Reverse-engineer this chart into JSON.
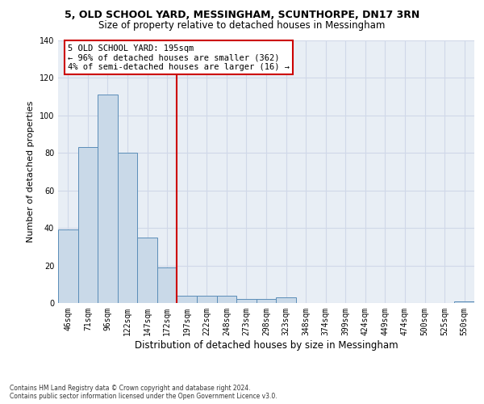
{
  "title1": "5, OLD SCHOOL YARD, MESSINGHAM, SCUNTHORPE, DN17 3RN",
  "title2": "Size of property relative to detached houses in Messingham",
  "xlabel": "Distribution of detached houses by size in Messingham",
  "ylabel": "Number of detached properties",
  "footnote": "Contains HM Land Registry data © Crown copyright and database right 2024.\nContains public sector information licensed under the Open Government Licence v3.0.",
  "categories": [
    "46sqm",
    "71sqm",
    "96sqm",
    "122sqm",
    "147sqm",
    "172sqm",
    "197sqm",
    "222sqm",
    "248sqm",
    "273sqm",
    "298sqm",
    "323sqm",
    "348sqm",
    "374sqm",
    "399sqm",
    "424sqm",
    "449sqm",
    "474sqm",
    "500sqm",
    "525sqm",
    "550sqm"
  ],
  "values": [
    39,
    83,
    111,
    80,
    35,
    19,
    4,
    4,
    4,
    2,
    2,
    3,
    0,
    0,
    0,
    0,
    0,
    0,
    0,
    0,
    1
  ],
  "bar_color": "#c9d9e8",
  "bar_edge_color": "#5b8db8",
  "vline_x_index": 6,
  "vline_color": "#cc0000",
  "annotation_text": "5 OLD SCHOOL YARD: 195sqm\n← 96% of detached houses are smaller (362)\n4% of semi-detached houses are larger (16) →",
  "annotation_box_color": "#ffffff",
  "annotation_box_edge": "#cc0000",
  "ylim": [
    0,
    140
  ],
  "yticks": [
    0,
    20,
    40,
    60,
    80,
    100,
    120,
    140
  ],
  "grid_color": "#d0d8e8",
  "background_color": "#e8eef5",
  "fig_background": "#ffffff",
  "title1_fontsize": 9,
  "title2_fontsize": 8.5,
  "ylabel_fontsize": 8,
  "xlabel_fontsize": 8.5,
  "tick_fontsize": 7,
  "footnote_fontsize": 5.5
}
